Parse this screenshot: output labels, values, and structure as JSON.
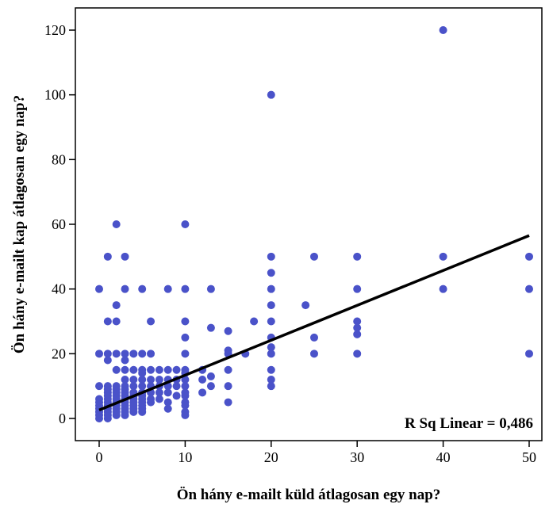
{
  "chart_data": {
    "type": "scatter",
    "xlabel": "Ön hány e-mailt küld átlagosan egy nap?",
    "ylabel": "Ön hány e-mailt kap átlagosan egy nap?",
    "xlim": [
      -3,
      52
    ],
    "ylim": [
      -5,
      128
    ],
    "x_ticks": [
      0,
      10,
      20,
      30,
      40,
      50
    ],
    "y_ticks": [
      0,
      20,
      40,
      60,
      80,
      100,
      120
    ],
    "grid": false,
    "point_color": "#4a52c9",
    "fit_line": {
      "type": "linear",
      "color": "#000000",
      "x": [
        0,
        50
      ],
      "y": [
        2.6,
        56.5
      ]
    },
    "annotation": "R Sq Linear = 0,486",
    "points": [
      [
        0,
        0
      ],
      [
        0,
        1
      ],
      [
        0,
        2
      ],
      [
        0,
        3
      ],
      [
        0,
        4
      ],
      [
        0,
        5
      ],
      [
        0,
        6
      ],
      [
        0,
        10
      ],
      [
        0,
        20
      ],
      [
        0,
        40
      ],
      [
        1,
        0
      ],
      [
        1,
        1
      ],
      [
        1,
        2
      ],
      [
        1,
        3
      ],
      [
        1,
        4
      ],
      [
        1,
        5
      ],
      [
        1,
        6
      ],
      [
        1,
        7
      ],
      [
        1,
        8
      ],
      [
        1,
        9
      ],
      [
        1,
        10
      ],
      [
        1,
        18
      ],
      [
        1,
        20
      ],
      [
        1,
        30
      ],
      [
        1,
        50
      ],
      [
        2,
        1
      ],
      [
        2,
        2
      ],
      [
        2,
        3
      ],
      [
        2,
        4
      ],
      [
        2,
        5
      ],
      [
        2,
        6
      ],
      [
        2,
        7
      ],
      [
        2,
        8
      ],
      [
        2,
        9
      ],
      [
        2,
        10
      ],
      [
        2,
        15
      ],
      [
        2,
        20
      ],
      [
        2,
        30
      ],
      [
        2,
        35
      ],
      [
        2,
        60
      ],
      [
        3,
        1
      ],
      [
        3,
        2
      ],
      [
        3,
        3
      ],
      [
        3,
        4
      ],
      [
        3,
        5
      ],
      [
        3,
        6
      ],
      [
        3,
        7
      ],
      [
        3,
        8
      ],
      [
        3,
        9
      ],
      [
        3,
        10
      ],
      [
        3,
        12
      ],
      [
        3,
        15
      ],
      [
        3,
        18
      ],
      [
        3,
        20
      ],
      [
        3,
        40
      ],
      [
        3,
        50
      ],
      [
        4,
        2
      ],
      [
        4,
        3
      ],
      [
        4,
        4
      ],
      [
        4,
        5
      ],
      [
        4,
        6
      ],
      [
        4,
        7
      ],
      [
        4,
        8
      ],
      [
        4,
        10
      ],
      [
        4,
        12
      ],
      [
        4,
        15
      ],
      [
        4,
        20
      ],
      [
        5,
        2
      ],
      [
        5,
        3
      ],
      [
        5,
        4
      ],
      [
        5,
        5
      ],
      [
        5,
        6
      ],
      [
        5,
        7
      ],
      [
        5,
        8
      ],
      [
        5,
        10
      ],
      [
        5,
        12
      ],
      [
        5,
        14
      ],
      [
        5,
        15
      ],
      [
        5,
        20
      ],
      [
        5,
        40
      ],
      [
        6,
        5
      ],
      [
        6,
        6
      ],
      [
        6,
        8
      ],
      [
        6,
        10
      ],
      [
        6,
        12
      ],
      [
        6,
        15
      ],
      [
        6,
        20
      ],
      [
        6,
        30
      ],
      [
        7,
        6
      ],
      [
        7,
        8
      ],
      [
        7,
        10
      ],
      [
        7,
        12
      ],
      [
        7,
        15
      ],
      [
        8,
        3
      ],
      [
        8,
        5
      ],
      [
        8,
        8
      ],
      [
        8,
        10
      ],
      [
        8,
        12
      ],
      [
        8,
        15
      ],
      [
        8,
        40
      ],
      [
        9,
        7
      ],
      [
        9,
        10
      ],
      [
        9,
        12
      ],
      [
        9,
        15
      ],
      [
        10,
        1
      ],
      [
        10,
        2
      ],
      [
        10,
        4
      ],
      [
        10,
        5
      ],
      [
        10,
        7
      ],
      [
        10,
        8
      ],
      [
        10,
        10
      ],
      [
        10,
        12
      ],
      [
        10,
        14
      ],
      [
        10,
        15
      ],
      [
        10,
        20
      ],
      [
        10,
        25
      ],
      [
        10,
        30
      ],
      [
        10,
        40
      ],
      [
        10,
        60
      ],
      [
        12,
        8
      ],
      [
        12,
        12
      ],
      [
        12,
        15
      ],
      [
        13,
        10
      ],
      [
        13,
        13
      ],
      [
        13,
        28
      ],
      [
        13,
        40
      ],
      [
        15,
        5
      ],
      [
        15,
        10
      ],
      [
        15,
        15
      ],
      [
        15,
        20
      ],
      [
        15,
        21
      ],
      [
        15,
        27
      ],
      [
        17,
        20
      ],
      [
        18,
        30
      ],
      [
        20,
        10
      ],
      [
        20,
        12
      ],
      [
        20,
        15
      ],
      [
        20,
        20
      ],
      [
        20,
        22
      ],
      [
        20,
        25
      ],
      [
        20,
        30
      ],
      [
        20,
        35
      ],
      [
        20,
        40
      ],
      [
        20,
        45
      ],
      [
        20,
        50
      ],
      [
        20,
        100
      ],
      [
        24,
        35
      ],
      [
        25,
        20
      ],
      [
        25,
        25
      ],
      [
        25,
        50
      ],
      [
        30,
        20
      ],
      [
        30,
        26
      ],
      [
        30,
        28
      ],
      [
        30,
        30
      ],
      [
        30,
        40
      ],
      [
        30,
        50
      ],
      [
        40,
        40
      ],
      [
        40,
        50
      ],
      [
        40,
        120
      ],
      [
        50,
        20
      ],
      [
        50,
        40
      ],
      [
        50,
        50
      ]
    ]
  }
}
